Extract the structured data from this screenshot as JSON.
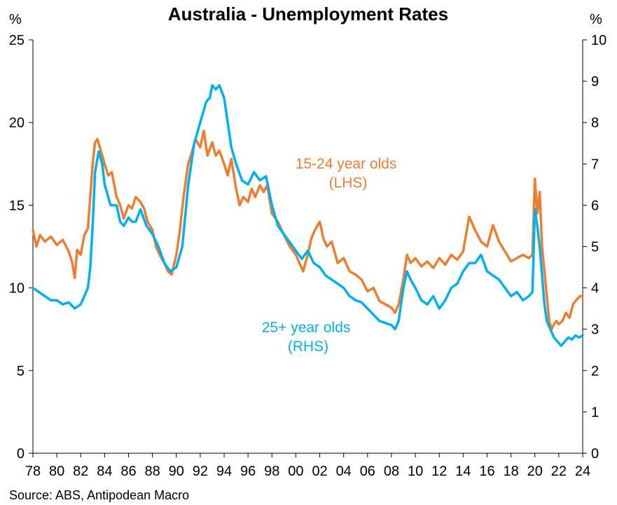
{
  "chart_data": {
    "type": "line",
    "title": "Australia - Unemployment Rates",
    "source": "Source: ABS, Antipodean Macro",
    "left_axis": {
      "unit": "%",
      "range": [
        0,
        25
      ],
      "ticks": [
        "0",
        "5",
        "10",
        "15",
        "20",
        "25"
      ]
    },
    "right_axis": {
      "unit": "%",
      "range": [
        0,
        10
      ],
      "ticks": [
        "0",
        "1",
        "2",
        "3",
        "4",
        "5",
        "6",
        "7",
        "8",
        "9",
        "10"
      ]
    },
    "x_axis": {
      "range": [
        1978,
        2024
      ],
      "ticks": [
        "78",
        "80",
        "82",
        "84",
        "86",
        "88",
        "90",
        "92",
        "94",
        "96",
        "98",
        "00",
        "02",
        "04",
        "06",
        "08",
        "10",
        "12",
        "14",
        "16",
        "18",
        "20",
        "22",
        "24"
      ]
    },
    "grid": false,
    "series": [
      {
        "name": "15-24 year olds (LHS)",
        "label_lines": [
          "15-24 year olds",
          "(LHS)"
        ],
        "axis": "left",
        "color": "#ED7D31",
        "x": [
          1978.0,
          1978.3,
          1978.6,
          1979.0,
          1979.5,
          1980.0,
          1980.5,
          1981.0,
          1981.3,
          1981.5,
          1981.7,
          1982.0,
          1982.3,
          1982.6,
          1982.8,
          1983.0,
          1983.2,
          1983.4,
          1983.6,
          1983.8,
          1984.0,
          1984.3,
          1984.6,
          1985.0,
          1985.3,
          1985.6,
          1986.0,
          1986.3,
          1986.6,
          1987.0,
          1987.3,
          1987.6,
          1988.0,
          1988.3,
          1988.6,
          1989.0,
          1989.3,
          1989.6,
          1990.0,
          1990.3,
          1990.6,
          1991.0,
          1991.3,
          1991.6,
          1992.0,
          1992.3,
          1992.6,
          1993.0,
          1993.3,
          1993.6,
          1994.0,
          1994.3,
          1994.6,
          1995.0,
          1995.3,
          1995.6,
          1996.0,
          1996.3,
          1996.6,
          1997.0,
          1997.3,
          1997.6,
          1998.0,
          1998.5,
          1999.0,
          1999.5,
          2000.0,
          2000.3,
          2000.6,
          2001.0,
          2001.3,
          2001.6,
          2002.0,
          2002.3,
          2002.6,
          2003.0,
          2003.5,
          2004.0,
          2004.5,
          2005.0,
          2005.5,
          2006.0,
          2006.5,
          2007.0,
          2007.5,
          2008.0,
          2008.3,
          2008.6,
          2009.0,
          2009.3,
          2009.6,
          2010.0,
          2010.5,
          2011.0,
          2011.5,
          2012.0,
          2012.5,
          2013.0,
          2013.5,
          2014.0,
          2014.5,
          2015.0,
          2015.5,
          2016.0,
          2016.5,
          2017.0,
          2017.5,
          2018.0,
          2018.5,
          2019.0,
          2019.5,
          2019.8,
          2020.0,
          2020.2,
          2020.4,
          2020.6,
          2020.8,
          2021.0,
          2021.2,
          2021.4,
          2021.6,
          2021.8,
          2022.0,
          2022.3,
          2022.6,
          2022.9,
          2023.2,
          2023.5,
          2023.8,
          2024.0
        ],
        "y": [
          13.5,
          12.5,
          13.2,
          12.8,
          13.1,
          12.6,
          12.9,
          12.2,
          11.5,
          10.6,
          12.3,
          12.0,
          13.2,
          13.6,
          15.5,
          17.5,
          18.8,
          19.0,
          18.5,
          18.0,
          17.5,
          16.8,
          17.0,
          15.5,
          15.0,
          14.2,
          15.0,
          14.8,
          15.5,
          15.2,
          14.8,
          14.0,
          13.5,
          12.5,
          12.0,
          11.5,
          11.0,
          10.8,
          12.0,
          13.5,
          15.5,
          17.5,
          18.2,
          19.0,
          18.5,
          19.5,
          18.0,
          18.8,
          18.0,
          18.3,
          17.5,
          16.8,
          17.8,
          16.0,
          15.0,
          15.5,
          15.2,
          16.0,
          15.5,
          16.2,
          15.8,
          16.2,
          14.5,
          14.0,
          13.2,
          12.5,
          12.0,
          11.5,
          11.0,
          12.0,
          13.0,
          13.5,
          14.0,
          13.0,
          12.5,
          12.8,
          11.5,
          11.8,
          11.0,
          10.8,
          10.5,
          9.8,
          10.0,
          9.2,
          9.0,
          8.8,
          8.5,
          9.0,
          10.5,
          12.0,
          11.5,
          11.8,
          11.3,
          11.6,
          11.2,
          11.8,
          11.4,
          12.0,
          11.7,
          12.2,
          14.3,
          13.5,
          12.8,
          12.5,
          13.8,
          12.8,
          12.2,
          11.6,
          11.8,
          12.0,
          11.8,
          12.0,
          16.6,
          14.5,
          15.8,
          12.5,
          11.0,
          9.5,
          8.0,
          7.5,
          7.8,
          8.0,
          7.8,
          8.0,
          8.5,
          8.2,
          9.0,
          9.3,
          9.5,
          9.5
        ]
      },
      {
        "name": "25+ year olds (RHS)",
        "label_lines": [
          "25+ year olds",
          "(RHS)"
        ],
        "axis": "right",
        "color": "#00B0F0",
        "x": [
          1978.0,
          1978.5,
          1979.0,
          1979.5,
          1980.0,
          1980.5,
          1981.0,
          1981.5,
          1982.0,
          1982.3,
          1982.6,
          1982.8,
          1983.0,
          1983.2,
          1983.5,
          1983.8,
          1984.0,
          1984.5,
          1985.0,
          1985.3,
          1985.6,
          1986.0,
          1986.3,
          1986.6,
          1987.0,
          1987.5,
          1988.0,
          1988.5,
          1989.0,
          1989.5,
          1990.0,
          1990.5,
          1991.0,
          1991.5,
          1992.0,
          1992.5,
          1992.8,
          1993.0,
          1993.3,
          1993.6,
          1994.0,
          1994.3,
          1994.6,
          1995.0,
          1995.5,
          1996.0,
          1996.5,
          1997.0,
          1997.5,
          1998.0,
          1998.5,
          1999.0,
          1999.5,
          2000.0,
          2000.5,
          2001.0,
          2001.5,
          2002.0,
          2002.5,
          2003.0,
          2003.5,
          2004.0,
          2004.5,
          2005.0,
          2005.5,
          2006.0,
          2006.5,
          2007.0,
          2007.5,
          2008.0,
          2008.3,
          2008.6,
          2009.0,
          2009.3,
          2009.6,
          2010.0,
          2010.5,
          2011.0,
          2011.5,
          2012.0,
          2012.5,
          2013.0,
          2013.5,
          2014.0,
          2014.5,
          2015.0,
          2015.5,
          2016.0,
          2016.5,
          2017.0,
          2017.5,
          2018.0,
          2018.5,
          2019.0,
          2019.5,
          2019.8,
          2020.0,
          2020.2,
          2020.4,
          2020.6,
          2020.8,
          2021.0,
          2021.3,
          2021.6,
          2021.9,
          2022.2,
          2022.5,
          2022.8,
          2023.1,
          2023.4,
          2023.7,
          2024.0
        ],
        "y": [
          4.0,
          3.9,
          3.8,
          3.7,
          3.7,
          3.6,
          3.65,
          3.5,
          3.6,
          3.8,
          4.0,
          4.5,
          5.5,
          6.8,
          7.3,
          7.0,
          6.5,
          6.0,
          6.0,
          5.6,
          5.5,
          5.7,
          5.6,
          5.6,
          5.9,
          5.5,
          5.3,
          5.0,
          4.6,
          4.4,
          4.5,
          5.0,
          6.5,
          7.5,
          8.0,
          8.5,
          8.6,
          8.9,
          8.8,
          8.9,
          8.6,
          8.0,
          7.4,
          7.0,
          6.6,
          6.5,
          6.8,
          6.6,
          6.7,
          6.0,
          5.5,
          5.3,
          5.1,
          4.9,
          4.7,
          4.9,
          4.6,
          4.5,
          4.3,
          4.2,
          4.1,
          4.0,
          3.8,
          3.7,
          3.65,
          3.5,
          3.35,
          3.2,
          3.15,
          3.1,
          3.0,
          3.2,
          4.0,
          4.4,
          4.2,
          4.0,
          3.7,
          3.6,
          3.8,
          3.5,
          3.7,
          4.0,
          4.1,
          4.4,
          4.6,
          4.6,
          4.8,
          4.4,
          4.3,
          4.2,
          4.0,
          3.8,
          3.9,
          3.7,
          3.8,
          3.9,
          5.9,
          5.5,
          5.0,
          4.3,
          3.6,
          3.2,
          3.0,
          2.8,
          2.7,
          2.6,
          2.7,
          2.8,
          2.75,
          2.85,
          2.8,
          2.85
        ]
      }
    ]
  }
}
